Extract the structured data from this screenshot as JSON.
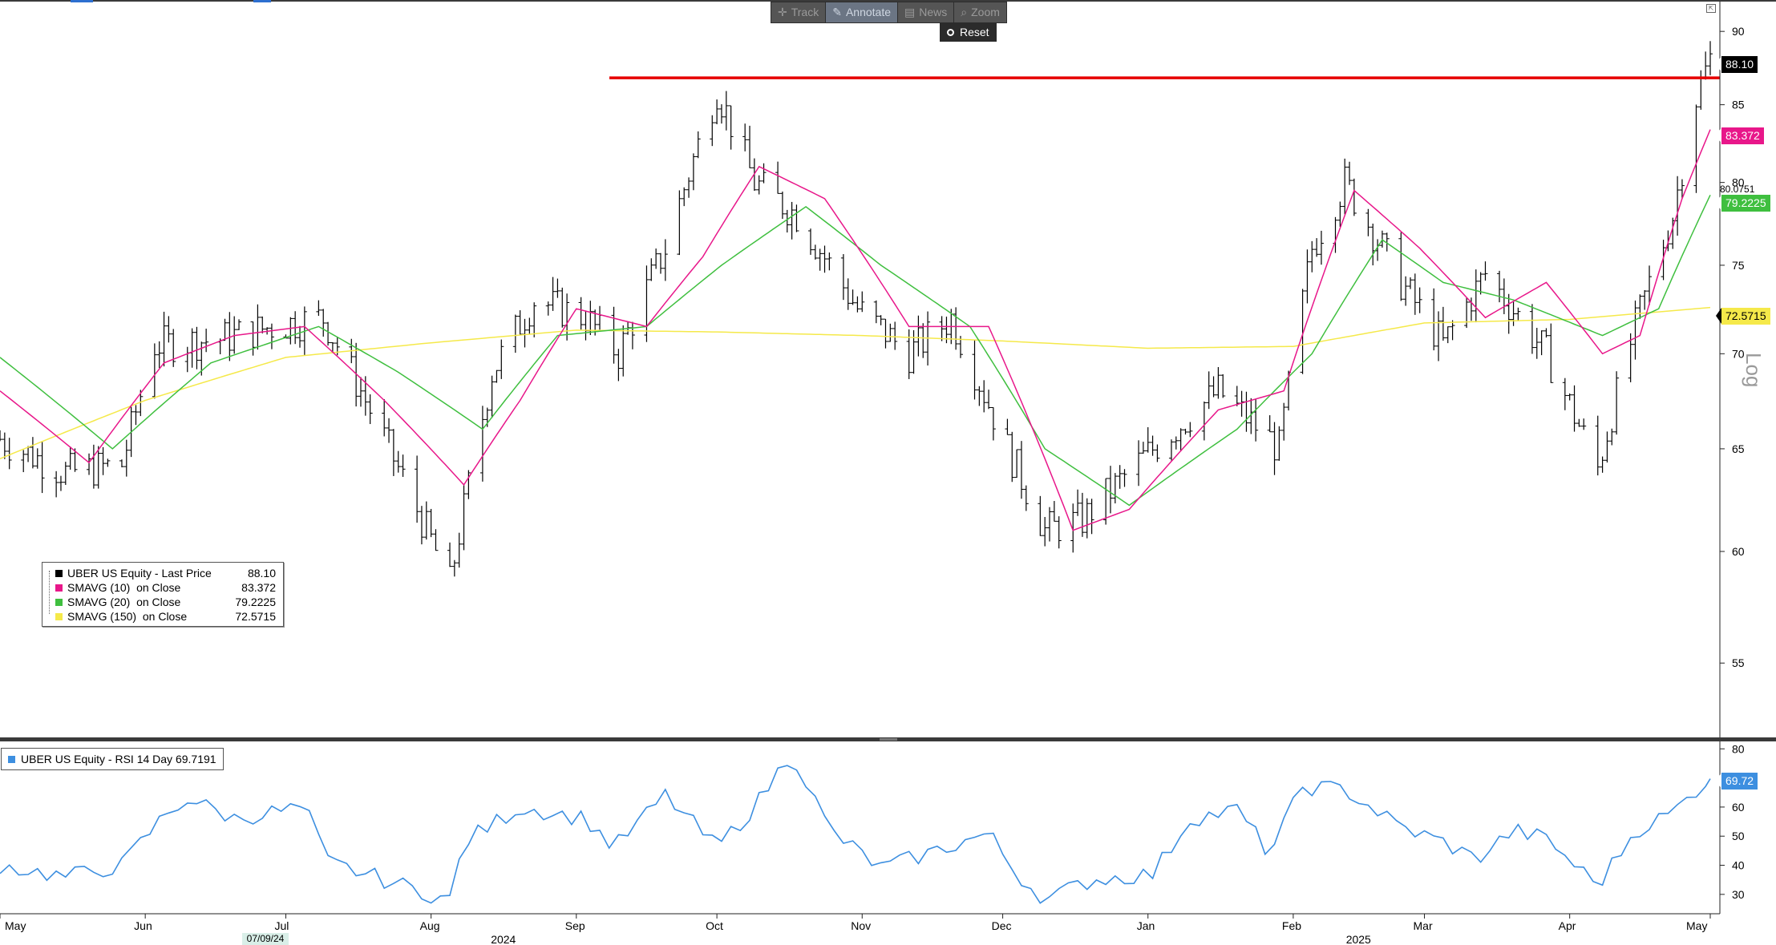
{
  "toolbar": {
    "track_label": "Track",
    "annotate_label": "Annotate",
    "news_label": "News",
    "zoom_label": "Zoom",
    "reset_label": "Reset"
  },
  "colors": {
    "price": "#000000",
    "sma10": "#e8178a",
    "sma20": "#3fbf3f",
    "sma150": "#f5e94a",
    "resistance": "#e60000",
    "rsi": "#3d8fe0"
  },
  "legend": {
    "rows": [
      {
        "name": "UBER US Equity - Last Price",
        "value": "88.10",
        "color": "#000000"
      },
      {
        "name": "SMAVG (10)  on Close",
        "value": "83.372",
        "color": "#e8178a"
      },
      {
        "name": "SMAVG (20)  on Close",
        "value": "79.2225",
        "color": "#3fbf3f"
      },
      {
        "name": "SMAVG (150)  on Close",
        "value": "72.5715",
        "color": "#f5e94a"
      }
    ]
  },
  "rsi_legend": {
    "label": "UBER US Equity - RSI 14 Day 69.7191",
    "color": "#3d8fe0"
  },
  "price_tags": {
    "last": "88.10",
    "sma10": "83.372",
    "sma20_alt": "80.0751",
    "sma20": "79.2225",
    "sma150": "72.5715"
  },
  "axis": {
    "scale_label": "Log",
    "price_ticks": [
      55,
      60,
      65,
      70,
      75,
      80,
      85,
      90
    ],
    "rsi_ticks": [
      30,
      40,
      50,
      60,
      70,
      80
    ],
    "months": [
      "May",
      "Jun",
      "Jul",
      "Aug",
      "Sep",
      "Oct",
      "Nov",
      "Dec",
      "Jan",
      "Feb",
      "Mar",
      "Apr",
      "May"
    ],
    "years": [
      {
        "label": "2024",
        "after": "Aug"
      },
      {
        "label": "2025",
        "after": "Feb"
      }
    ],
    "flag_date": "07/09/24"
  },
  "chart_data": [
    {
      "type": "ohlc",
      "series_name": "UBER US Equity - Last Price",
      "scale": "log",
      "ylim": [
        52,
        92
      ],
      "x_range": [
        "2024-05-01",
        "2025-05-01"
      ],
      "resistance_level": 86.8,
      "close_points": [
        [
          "2024-05-01",
          65.5
        ],
        [
          "2024-05-15",
          63.8
        ],
        [
          "2024-05-27",
          64.2
        ],
        [
          "2024-06-03",
          70.5
        ],
        [
          "2024-06-17",
          70.8
        ],
        [
          "2024-06-28",
          71.5
        ],
        [
          "2024-07-09",
          72.0
        ],
        [
          "2024-07-24",
          64.5
        ],
        [
          "2024-08-05",
          58.5
        ],
        [
          "2024-08-14",
          69.0
        ],
        [
          "2024-08-23",
          73.0
        ],
        [
          "2024-09-03",
          72.0
        ],
        [
          "2024-09-10",
          70.0
        ],
        [
          "2024-09-20",
          76.0
        ],
        [
          "2024-10-01",
          86.0
        ],
        [
          "2024-10-09",
          80.0
        ],
        [
          "2024-10-18",
          78.0
        ],
        [
          "2024-10-31",
          72.5
        ],
        [
          "2024-11-11",
          70.0
        ],
        [
          "2024-11-20",
          72.0
        ],
        [
          "2024-12-02",
          65.0
        ],
        [
          "2024-12-10",
          61.0
        ],
        [
          "2024-12-18",
          61.5
        ],
        [
          "2025-01-02",
          65.0
        ],
        [
          "2025-01-16",
          68.0
        ],
        [
          "2025-01-29",
          65.0
        ],
        [
          "2025-02-05",
          76.0
        ],
        [
          "2025-02-12",
          80.0
        ],
        [
          "2025-02-24",
          74.0
        ],
        [
          "2025-03-05",
          70.5
        ],
        [
          "2025-03-14",
          74.5
        ],
        [
          "2025-03-27",
          70.0
        ],
        [
          "2025-04-07",
          64.0
        ],
        [
          "2025-04-15",
          71.5
        ],
        [
          "2025-04-23",
          78.0
        ],
        [
          "2025-04-28",
          85.5
        ],
        [
          "2025-05-01",
          88.1
        ]
      ]
    },
    {
      "type": "line",
      "series_name": "SMAVG (10) on Close",
      "points": [
        [
          "2024-05-01",
          68.0
        ],
        [
          "2024-05-20",
          64.3
        ],
        [
          "2024-06-05",
          69.5
        ],
        [
          "2024-06-20",
          71.0
        ],
        [
          "2024-07-05",
          71.5
        ],
        [
          "2024-07-22",
          67.5
        ],
        [
          "2024-08-08",
          63.2
        ],
        [
          "2024-08-20",
          67.5
        ],
        [
          "2024-09-01",
          72.5
        ],
        [
          "2024-09-16",
          71.5
        ],
        [
          "2024-09-28",
          75.5
        ],
        [
          "2024-10-10",
          81.0
        ],
        [
          "2024-10-24",
          79.0
        ],
        [
          "2024-11-11",
          71.5
        ],
        [
          "2024-11-28",
          71.5
        ],
        [
          "2024-12-16",
          61.0
        ],
        [
          "2024-12-28",
          62.0
        ],
        [
          "2025-01-16",
          67.0
        ],
        [
          "2025-01-30",
          68.0
        ],
        [
          "2025-02-14",
          79.5
        ],
        [
          "2025-02-28",
          76.0
        ],
        [
          "2025-03-14",
          72.0
        ],
        [
          "2025-03-27",
          74.0
        ],
        [
          "2025-04-08",
          70.0
        ],
        [
          "2025-04-16",
          71.0
        ],
        [
          "2025-04-25",
          79.0
        ],
        [
          "2025-05-01",
          83.37
        ]
      ]
    },
    {
      "type": "line",
      "series_name": "SMAVG (20) on Close",
      "points": [
        [
          "2024-05-01",
          69.8
        ],
        [
          "2024-05-25",
          65.0
        ],
        [
          "2024-06-15",
          69.5
        ],
        [
          "2024-07-08",
          71.5
        ],
        [
          "2024-07-25",
          69.0
        ],
        [
          "2024-08-12",
          66.0
        ],
        [
          "2024-08-28",
          71.0
        ],
        [
          "2024-09-16",
          71.5
        ],
        [
          "2024-10-02",
          75.0
        ],
        [
          "2024-10-20",
          78.5
        ],
        [
          "2024-11-05",
          75.0
        ],
        [
          "2024-11-24",
          71.5
        ],
        [
          "2024-12-10",
          65.0
        ],
        [
          "2024-12-28",
          62.2
        ],
        [
          "2025-01-20",
          66.0
        ],
        [
          "2025-02-05",
          70.0
        ],
        [
          "2025-02-20",
          76.5
        ],
        [
          "2025-03-05",
          74.0
        ],
        [
          "2025-03-20",
          73.0
        ],
        [
          "2025-04-08",
          71.0
        ],
        [
          "2025-04-20",
          72.5
        ],
        [
          "2025-05-01",
          79.22
        ]
      ]
    },
    {
      "type": "line",
      "series_name": "SMAVG (150) on Close",
      "points": [
        [
          "2024-05-01",
          64.5
        ],
        [
          "2024-06-01",
          67.5
        ],
        [
          "2024-07-01",
          69.8
        ],
        [
          "2024-08-01",
          70.6
        ],
        [
          "2024-09-01",
          71.3
        ],
        [
          "2024-10-01",
          71.2
        ],
        [
          "2024-11-01",
          71.0
        ],
        [
          "2024-12-01",
          70.7
        ],
        [
          "2025-01-01",
          70.3
        ],
        [
          "2025-02-01",
          70.4
        ],
        [
          "2025-03-01",
          71.7
        ],
        [
          "2025-04-01",
          71.9
        ],
        [
          "2025-05-01",
          72.57
        ]
      ]
    },
    {
      "type": "line",
      "series_name": "UBER US Equity - RSI 14 Day",
      "ylim": [
        25,
        82
      ],
      "points": [
        [
          "2024-05-01",
          40
        ],
        [
          "2024-05-15",
          36
        ],
        [
          "2024-05-27",
          40
        ],
        [
          "2024-06-05",
          57
        ],
        [
          "2024-06-10",
          63
        ],
        [
          "2024-06-20",
          56
        ],
        [
          "2024-07-05",
          60
        ],
        [
          "2024-07-10",
          41
        ],
        [
          "2024-07-24",
          34
        ],
        [
          "2024-08-05",
          28
        ],
        [
          "2024-08-08",
          48
        ],
        [
          "2024-08-20",
          60
        ],
        [
          "2024-09-03",
          56
        ],
        [
          "2024-09-09",
          46
        ],
        [
          "2024-09-20",
          64
        ],
        [
          "2024-10-01",
          46
        ],
        [
          "2024-10-09",
          60
        ],
        [
          "2024-10-17",
          79
        ],
        [
          "2024-10-25",
          52
        ],
        [
          "2024-11-05",
          39
        ],
        [
          "2024-11-15",
          44
        ],
        [
          "2024-11-28",
          51
        ],
        [
          "2024-12-04",
          37
        ],
        [
          "2024-12-10",
          28
        ],
        [
          "2024-12-20",
          35
        ],
        [
          "2025-01-02",
          37
        ],
        [
          "2025-01-10",
          56
        ],
        [
          "2025-01-20",
          59
        ],
        [
          "2025-01-27",
          44
        ],
        [
          "2025-02-03",
          67
        ],
        [
          "2025-02-12",
          66
        ],
        [
          "2025-02-24",
          53
        ],
        [
          "2025-03-05",
          48
        ],
        [
          "2025-03-12",
          42
        ],
        [
          "2025-03-20",
          52
        ],
        [
          "2025-03-27",
          49
        ],
        [
          "2025-04-07",
          33
        ],
        [
          "2025-04-15",
          52
        ],
        [
          "2025-04-23",
          58
        ],
        [
          "2025-04-28",
          66
        ],
        [
          "2025-05-01",
          69.72
        ]
      ]
    }
  ]
}
